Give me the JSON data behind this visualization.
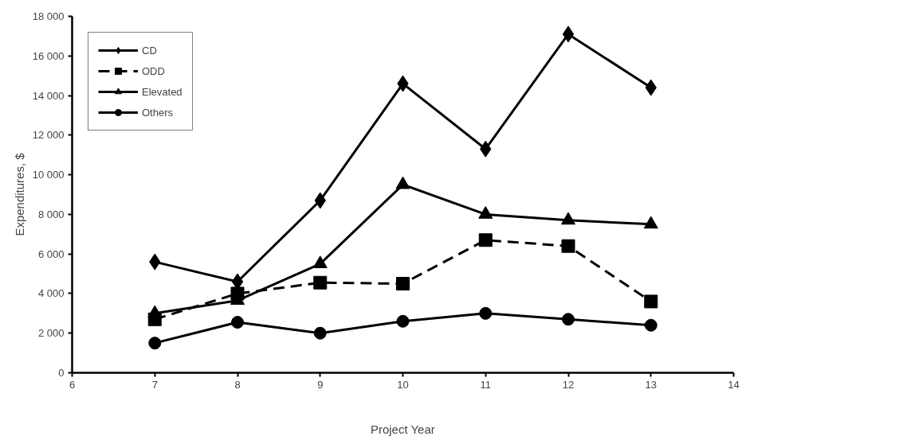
{
  "chart_data": {
    "type": "line",
    "xlabel": "Project Year",
    "ylabel": "Expenditures, $",
    "x": [
      7,
      8,
      9,
      10,
      11,
      12,
      13
    ],
    "series": [
      {
        "name": "CD",
        "color": "#000000",
        "marker": "diamond",
        "line_style": "solid",
        "values": [
          5600,
          4600,
          8700,
          14600,
          11300,
          17100,
          14400
        ]
      },
      {
        "name": "ODD",
        "color": "#000000",
        "marker": "square",
        "line_style": "dashed",
        "values": [
          2700,
          4000,
          4550,
          4500,
          6700,
          6400,
          3600
        ]
      },
      {
        "name": "Elevated",
        "color": "#000000",
        "marker": "triangle",
        "line_style": "solid",
        "values": [
          3000,
          3650,
          5500,
          9500,
          8000,
          7700,
          7500
        ]
      },
      {
        "name": "Others",
        "color": "#000000",
        "marker": "circle",
        "line_style": "solid",
        "values": [
          1500,
          2550,
          2000,
          2600,
          3000,
          2700,
          2400
        ]
      }
    ],
    "xlim": [
      6,
      14
    ],
    "xticks": [
      6,
      7,
      8,
      9,
      10,
      11,
      12,
      13,
      14
    ],
    "ylim": [
      0,
      18000
    ],
    "yticks": [
      0,
      {
        "value": 2000,
        "label": "2 000"
      },
      {
        "value": 4000,
        "label": "4 000"
      },
      {
        "value": 6000,
        "label": "6 000"
      },
      {
        "value": 8000,
        "label": "8 000"
      },
      {
        "value": 10000,
        "label": "10 000"
      },
      {
        "value": 12000,
        "label": "12 000"
      },
      {
        "value": 14000,
        "label": "14 000"
      },
      {
        "value": 16000,
        "label": "16 000"
      },
      {
        "value": 18000,
        "label": "18 000"
      }
    ],
    "grid": false,
    "legend": "top left"
  }
}
